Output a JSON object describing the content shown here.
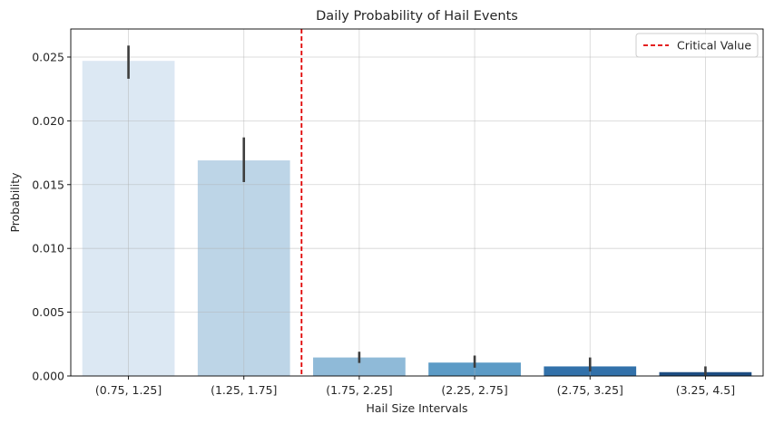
{
  "chart_data": {
    "type": "bar",
    "title": "Daily Probability of Hail Events",
    "xlabel": "Hail Size Intervals",
    "ylabel": "Probability",
    "categories": [
      "(0.75, 1.25]",
      "(1.25, 1.75]",
      "(1.75, 2.25]",
      "(2.25, 2.75]",
      "(2.75, 3.25]",
      "(3.25, 4.5]"
    ],
    "values": [
      0.0247,
      0.0169,
      0.00145,
      0.00105,
      0.00075,
      0.0003
    ],
    "error_low": [
      0.0233,
      0.0152,
      0.00102,
      0.00065,
      0.00035,
      5e-05
    ],
    "error_high": [
      0.0259,
      0.0187,
      0.0019,
      0.0016,
      0.00145,
      0.00075
    ],
    "bar_colors": [
      "#dce8f3",
      "#bdd5e7",
      "#8fbad8",
      "#5c9bc6",
      "#3271aa",
      "#1d4d82"
    ],
    "ylim": [
      0,
      0.0272
    ],
    "yticks": [
      0,
      0.005,
      0.01,
      0.015,
      0.02,
      0.025
    ],
    "ytick_labels": [
      "0.000",
      "0.005",
      "0.010",
      "0.015",
      "0.020",
      "0.025"
    ],
    "critical_value": {
      "label": "Critical Value",
      "position": 1.5,
      "color": "#e00000"
    },
    "legend_placement": "top-right",
    "grid": true
  }
}
